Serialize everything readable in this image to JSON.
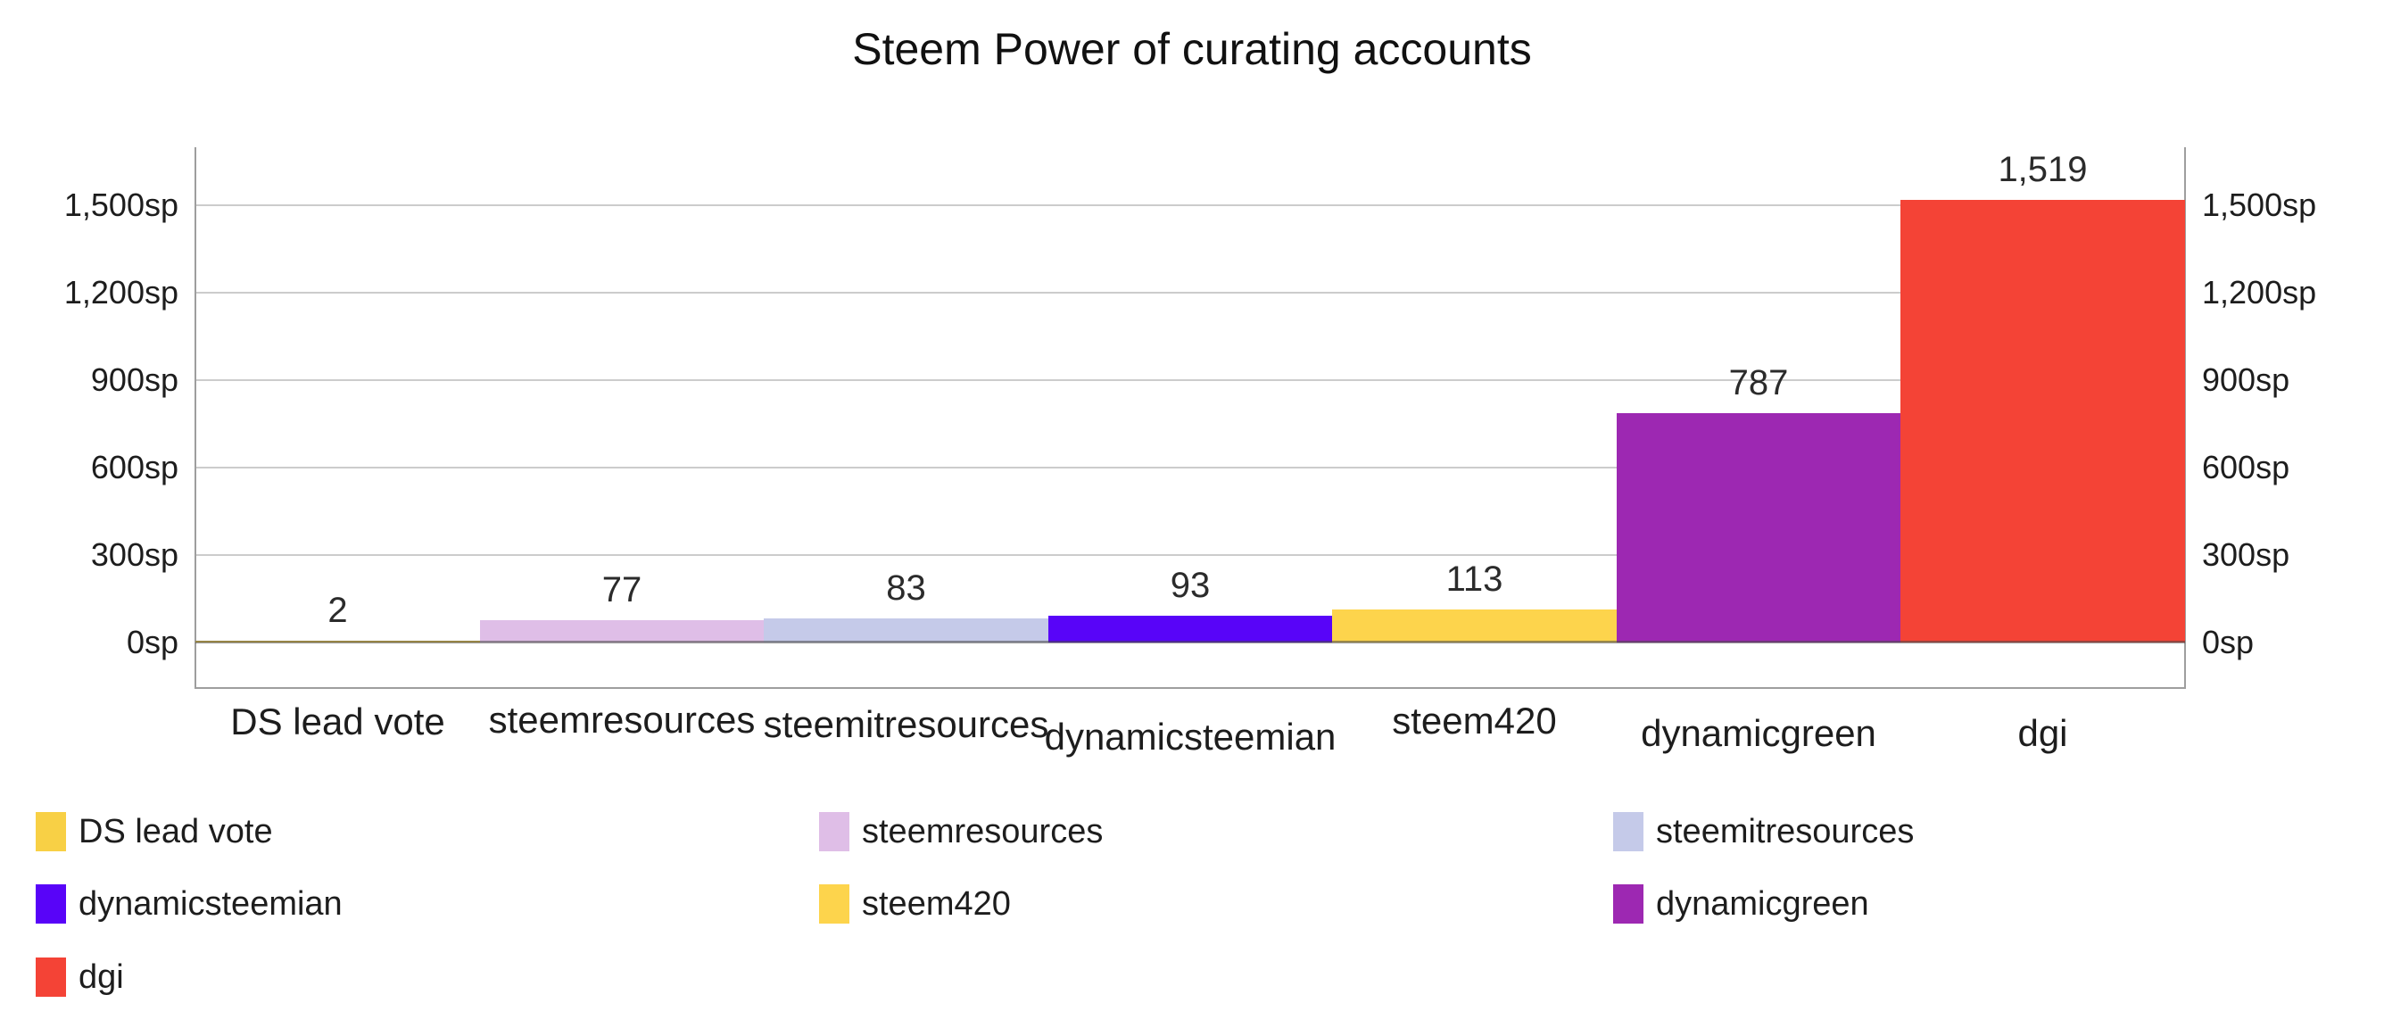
{
  "title": "Steem Power of curating accounts",
  "chart_data": {
    "type": "bar",
    "title": "Steem Power of curating accounts",
    "categories": [
      "DS lead vote",
      "steemresources",
      "steemitresources",
      "dynamicsteemian",
      "steem420",
      "dynamicgreen",
      "dgi"
    ],
    "values": [
      2,
      77,
      83,
      93,
      113,
      787,
      1519
    ],
    "value_labels": [
      "2",
      "77",
      "83",
      "93",
      "113",
      "787",
      "1,519"
    ],
    "colors": [
      "#F8D045",
      "#DFBEE7",
      "#C5CAE9",
      "#5804F8",
      "#FDD44C",
      "#9D28B2",
      "#F44336"
    ],
    "unit": "sp",
    "xlabel": "",
    "ylabel": "",
    "y_ticks": [
      0,
      300,
      600,
      900,
      1200,
      1500
    ],
    "y_tick_labels": [
      "0sp",
      "300sp",
      "600sp",
      "900sp",
      "1,200sp",
      "1,500sp"
    ],
    "ylim": [
      -155,
      1700
    ],
    "grid": true,
    "dual_y_axis": true,
    "legend_position": "bottom",
    "gridline_color": "#cccccc",
    "axis_border_color": "#9e9e9e",
    "text_color": "#1d1d1d"
  }
}
